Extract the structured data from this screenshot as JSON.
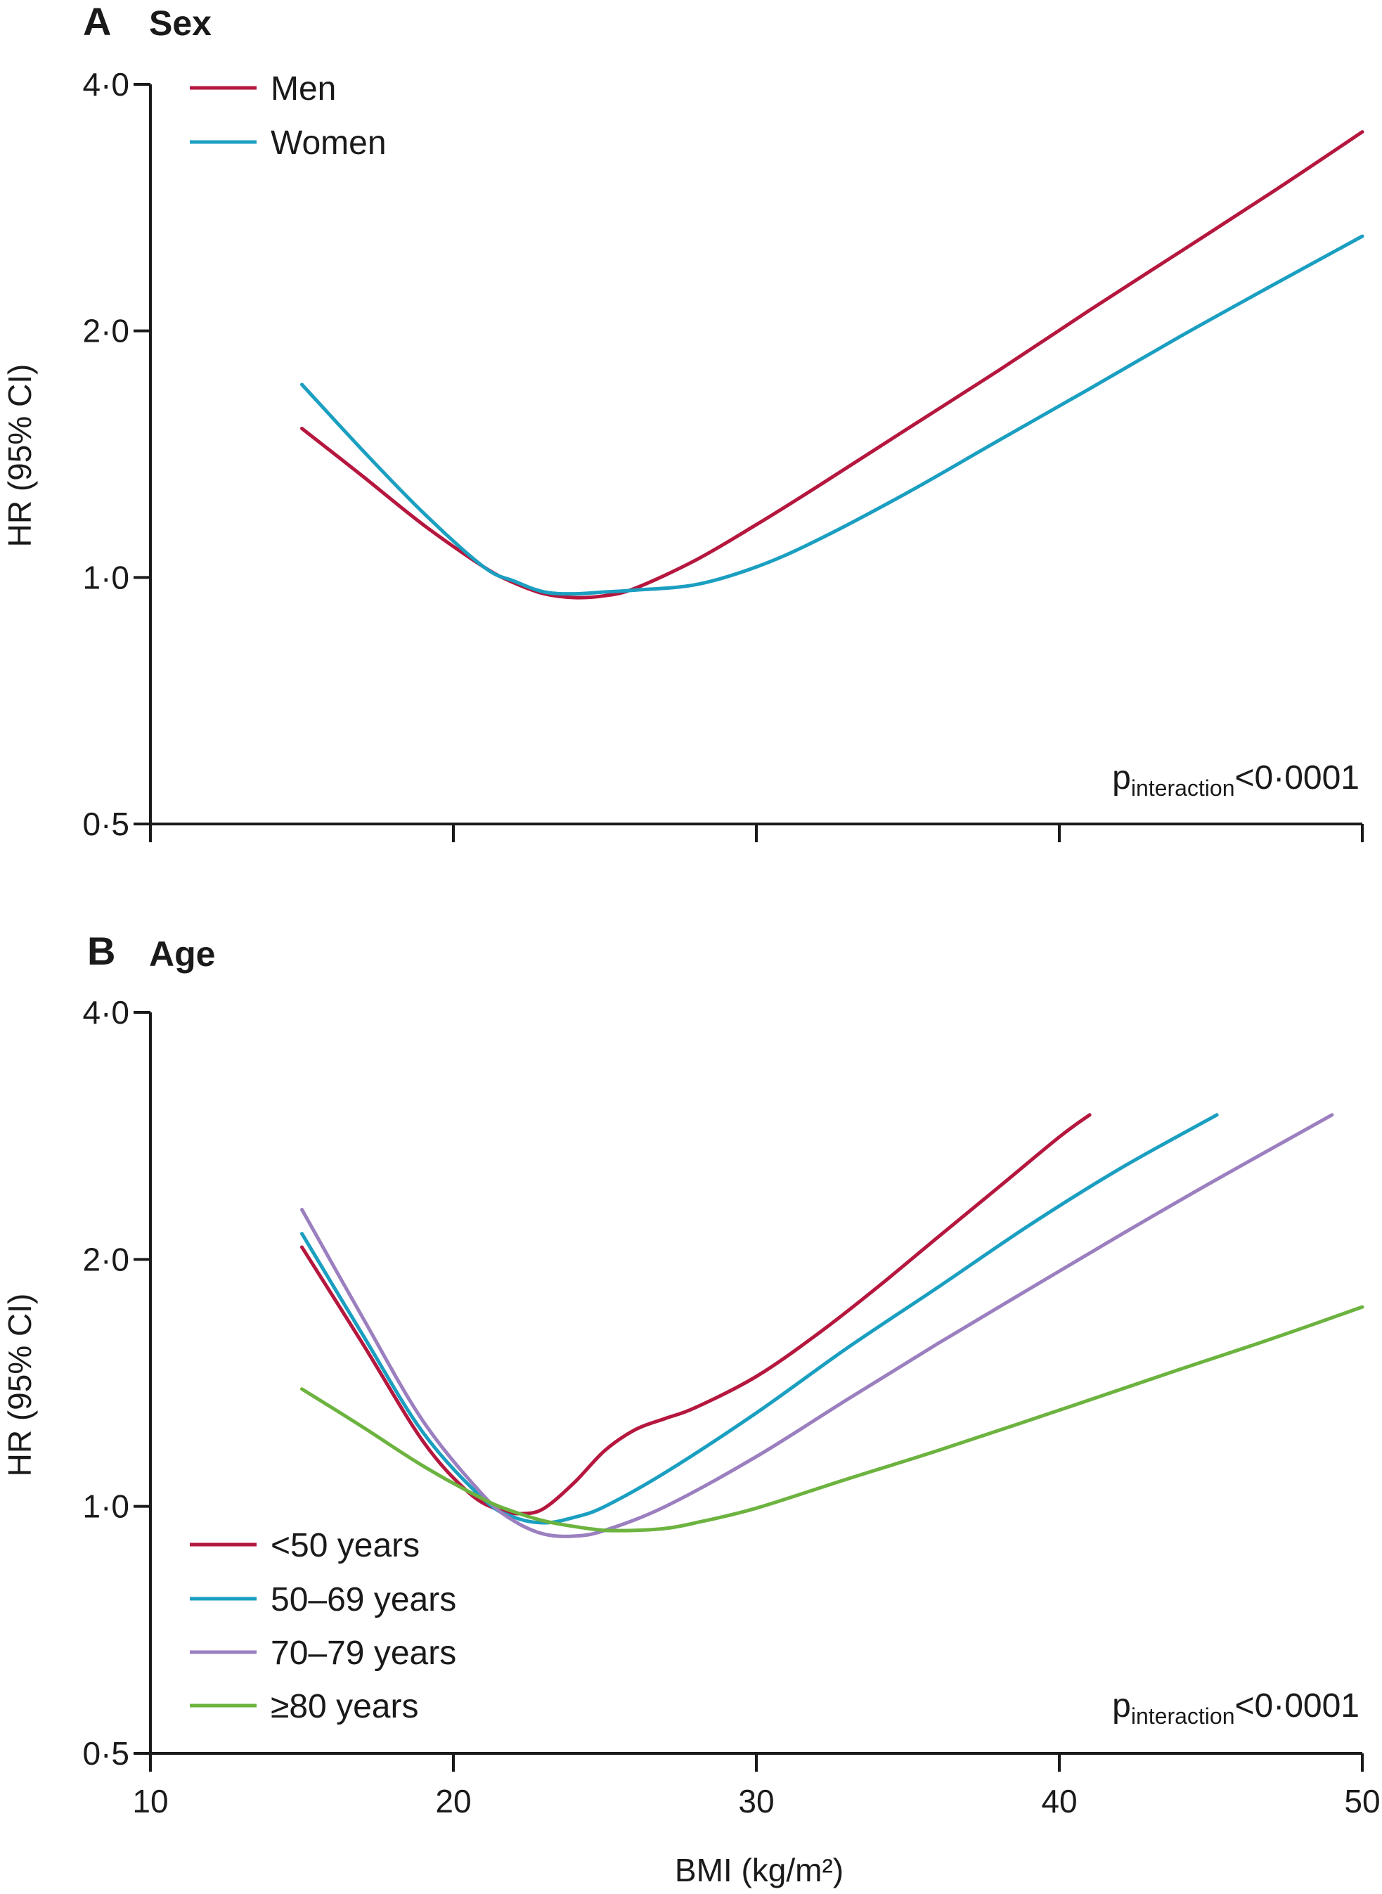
{
  "chart_data": [
    {
      "type": "line",
      "panel": "A",
      "title": "Sex",
      "xlabel": "",
      "ylabel": "HR (95% CI)",
      "xlim": [
        10,
        50
      ],
      "ylim": [
        0.5,
        4.0
      ],
      "yscale": "log",
      "yticks": [
        0.5,
        1.0,
        2.0,
        4.0
      ],
      "ytick_labels": [
        "0·5",
        "1·0",
        "2·0",
        "4·0"
      ],
      "xticks": [
        10,
        20,
        30,
        40,
        50
      ],
      "xtick_labels": [],
      "legend_position": "top-left",
      "annotation": {
        "prefix": "p",
        "sub": "interaction",
        "suffix": "<0·0001"
      },
      "series": [
        {
          "name": "Men",
          "color": "#b5173e",
          "x": [
            15,
            17,
            19,
            21,
            22,
            23,
            24,
            25,
            26,
            28,
            30,
            32,
            35,
            38,
            41,
            44,
            47,
            50
          ],
          "y": [
            1.52,
            1.33,
            1.16,
            1.03,
            0.985,
            0.955,
            0.945,
            0.95,
            0.97,
            1.05,
            1.16,
            1.29,
            1.52,
            1.79,
            2.12,
            2.5,
            2.95,
            3.5
          ]
        },
        {
          "name": "Women",
          "color": "#1b9fc1",
          "x": [
            15,
            17,
            19,
            21,
            22,
            23,
            24,
            25,
            26,
            28,
            30,
            32,
            35,
            38,
            41,
            44,
            47,
            50
          ],
          "y": [
            1.72,
            1.43,
            1.2,
            1.03,
            0.99,
            0.96,
            0.955,
            0.96,
            0.965,
            0.98,
            1.03,
            1.11,
            1.27,
            1.47,
            1.7,
            1.97,
            2.27,
            2.61
          ]
        }
      ]
    },
    {
      "type": "line",
      "panel": "B",
      "title": "Age",
      "xlabel": "BMI (kg/m²)",
      "ylabel": "HR (95% CI)",
      "xlim": [
        10,
        50
      ],
      "ylim": [
        0.5,
        4.0
      ],
      "yscale": "log",
      "yticks": [
        0.5,
        1.0,
        2.0,
        4.0
      ],
      "ytick_labels": [
        "0·5",
        "1·0",
        "2·0",
        "4·0"
      ],
      "xticks": [
        10,
        20,
        30,
        40,
        50
      ],
      "xtick_labels": [
        "10",
        "20",
        "30",
        "40",
        "50"
      ],
      "legend_position": "bottom-left",
      "annotation": {
        "prefix": "p",
        "sub": "interaction",
        "suffix": "<0·0001"
      },
      "series": [
        {
          "name": "<50 years",
          "color": "#b5173e",
          "x": [
            15,
            17,
            19,
            20.5,
            21.5,
            22.3,
            23,
            24,
            25,
            26,
            27,
            28,
            30,
            32,
            34,
            36,
            38,
            40,
            41
          ],
          "y": [
            2.07,
            1.58,
            1.2,
            1.04,
            0.99,
            0.98,
            0.995,
            1.07,
            1.17,
            1.24,
            1.28,
            1.32,
            1.44,
            1.62,
            1.85,
            2.13,
            2.45,
            2.82,
            3.0
          ]
        },
        {
          "name": "50–69 years",
          "color": "#1b9fc1",
          "x": [
            15,
            17,
            19,
            21,
            22,
            23,
            24,
            25,
            27,
            30,
            33,
            36,
            39,
            42,
            45.2
          ],
          "y": [
            2.15,
            1.62,
            1.23,
            1.02,
            0.97,
            0.955,
            0.97,
            1.0,
            1.1,
            1.3,
            1.56,
            1.85,
            2.2,
            2.58,
            3.0
          ]
        },
        {
          "name": "70–79 years",
          "color": "#9b7fbf",
          "x": [
            15,
            17,
            19,
            21,
            22,
            23,
            24,
            25,
            27,
            30,
            33,
            36,
            39,
            42,
            45,
            49
          ],
          "y": [
            2.3,
            1.7,
            1.27,
            1.03,
            0.96,
            0.925,
            0.92,
            0.935,
            1.0,
            1.15,
            1.35,
            1.58,
            1.84,
            2.14,
            2.48,
            3.0
          ]
        },
        {
          "name": "≥80 years",
          "color": "#6cb33f",
          "x": [
            15,
            17,
            19,
            21,
            22,
            23,
            24,
            25,
            26,
            27,
            28,
            30,
            33,
            36,
            40,
            44,
            47,
            50
          ],
          "y": [
            1.39,
            1.25,
            1.12,
            1.02,
            0.985,
            0.96,
            0.945,
            0.935,
            0.935,
            0.94,
            0.955,
            0.995,
            1.08,
            1.17,
            1.31,
            1.47,
            1.6,
            1.75
          ]
        }
      ]
    }
  ]
}
